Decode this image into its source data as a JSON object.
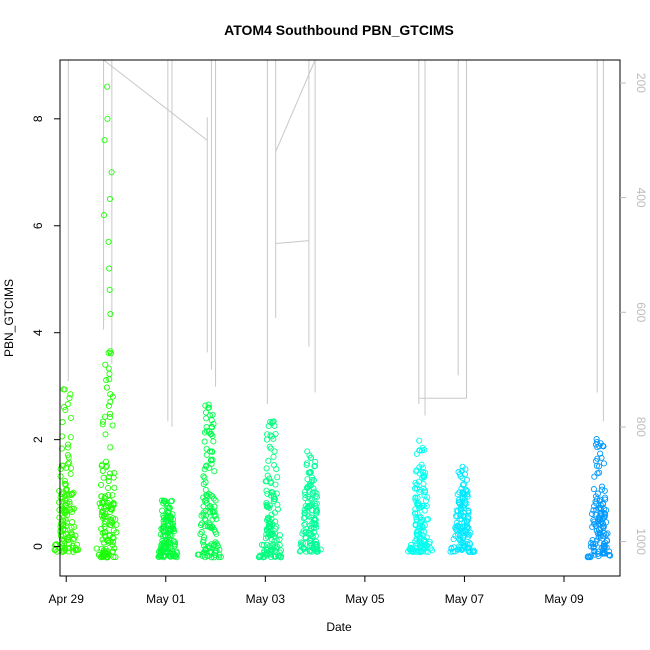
{
  "chart_data": {
    "type": "scatter",
    "title": "ATOM4 Southbound PBN_GTCIMS",
    "xlabel": "Date",
    "ylabel": "PBN_GTCIMS",
    "x_ticks": [
      "Apr 29",
      "May 01",
      "May 03",
      "May 05",
      "May 07",
      "May 09"
    ],
    "y_ticks": [
      "0",
      "2",
      "4",
      "6",
      "8"
    ],
    "right_axis_ticks": [
      "200",
      "400",
      "600",
      "800",
      "1000"
    ],
    "xlim": [
      "2021-04-28T21:00",
      "2021-05-10T03:00"
    ],
    "ylim": [
      -0.55,
      9.1
    ],
    "right_ylim": [
      1060,
      160
    ],
    "right_axis_reversed": true,
    "grid": false,
    "point_style": "open circles, color shifting green → cyan → blue over time",
    "series_color_gradient": [
      "#22ff00",
      "#00ff66",
      "#00ffdd",
      "#0099ff"
    ],
    "overlay_line_color": "#c8c8c8",
    "clusters": [
      {
        "date": "2021-04-29T00:00",
        "ymin": -0.1,
        "ymax": 3.2,
        "color": "#2aff00"
      },
      {
        "date": "2021-04-29T20:00",
        "ymin": -0.2,
        "ymax": 3.9,
        "outliers": [
          4.35,
          4.8,
          5.2,
          5.7,
          6.2,
          6.5,
          7.0,
          7.6,
          8.0,
          8.6
        ],
        "color": "#1aff00"
      },
      {
        "date": "2021-05-01T01:00",
        "ymin": -0.2,
        "ymax": 0.9,
        "color": "#00ff38"
      },
      {
        "date": "2021-05-01T21:00",
        "ymin": -0.2,
        "ymax": 2.7,
        "color": "#00ff4a"
      },
      {
        "date": "2021-05-03T03:00",
        "ymin": -0.2,
        "ymax": 2.4,
        "color": "#00ff80"
      },
      {
        "date": "2021-05-03T22:00",
        "ymin": -0.1,
        "ymax": 1.8,
        "color": "#00ff99"
      },
      {
        "date": "2021-05-06T03:00",
        "ymin": -0.1,
        "ymax": 2.0,
        "color": "#00ffee"
      },
      {
        "date": "2021-05-06T23:00",
        "ymin": -0.1,
        "ymax": 1.5,
        "color": "#00e8ff"
      },
      {
        "date": "2021-05-09T17:00",
        "ymin": -0.2,
        "ymax": 2.1,
        "color": "#0099ff"
      }
    ],
    "overlay_lines": [
      {
        "date": "2021-04-29T01:00",
        "min": 160,
        "max": 720
      },
      {
        "date": "2021-04-29T18:00",
        "min": 160,
        "max": 630
      },
      {
        "date": "2021-04-29T22:00",
        "min": 160,
        "max": 690
      },
      {
        "date": "2021-05-01T01:00",
        "min": 160,
        "max": 790
      },
      {
        "date": "2021-05-01T03:00",
        "min": 160,
        "max": 800
      },
      {
        "date": "2021-05-01T20:00",
        "min": 260,
        "max": 670
      },
      {
        "date": "2021-05-01T22:00",
        "min": 160,
        "max": 700
      },
      {
        "date": "2021-05-02T00:00",
        "min": 160,
        "max": 730
      },
      {
        "date": "2021-05-03T01:00",
        "min": 160,
        "max": 760
      },
      {
        "date": "2021-05-03T05:00",
        "min": 160,
        "max": 610
      },
      {
        "date": "2021-05-03T21:00",
        "min": 160,
        "max": 660
      },
      {
        "date": "2021-05-04T00:00",
        "min": 160,
        "max": 740
      },
      {
        "date": "2021-05-06T02:00",
        "min": 160,
        "max": 760
      },
      {
        "date": "2021-05-06T05:00",
        "min": 160,
        "max": 780
      },
      {
        "date": "2021-05-06T21:00",
        "min": 160,
        "max": 710
      },
      {
        "date": "2021-05-07T01:00",
        "min": 160,
        "max": 750
      },
      {
        "date": "2021-05-09T16:00",
        "min": 160,
        "max": 740
      },
      {
        "date": "2021-05-09T19:00",
        "min": 160,
        "max": 790
      }
    ]
  }
}
